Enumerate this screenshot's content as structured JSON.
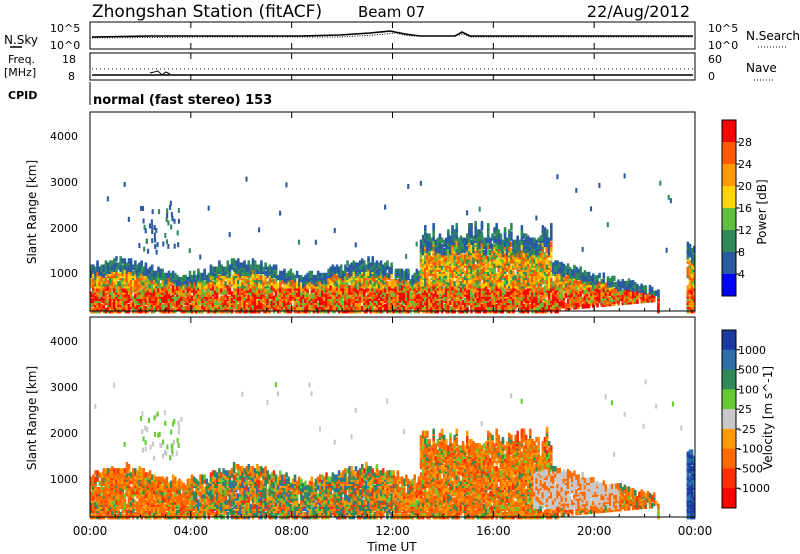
{
  "header": {
    "station": "Zhongshan Station (fitACF)",
    "beam": "Beam 07",
    "date": "22/Aug/2012"
  },
  "noise_panel": {
    "left_label": "N.Sky",
    "left_ticks": [
      "10^5",
      "10^0"
    ],
    "right_label": "N.Search",
    "right_ticks": [
      "10^5",
      "10^0"
    ]
  },
  "freq_panel": {
    "left_label_1": "Freq.",
    "left_label_2": "[MHz]",
    "left_ticks": [
      "18",
      "8"
    ],
    "right_label": "Nave",
    "right_ticks": [
      "60",
      "0"
    ],
    "cpid_label": "CPID",
    "cpid_text": "normal (fast stereo) 153"
  },
  "x_axis": {
    "label": "Time UT",
    "ticks": [
      "00:00",
      "04:00",
      "08:00",
      "12:00",
      "16:00",
      "20:00",
      "00:00"
    ]
  },
  "chart_data": [
    {
      "type": "heatmap",
      "title": "",
      "xlabel": "Time UT",
      "ylabel": "Slant Range [km]",
      "x_range_hours": [
        0,
        24
      ],
      "ylim": [
        180,
        4500
      ],
      "y_ticks": [
        "4000",
        "3000",
        "2000",
        "1000"
      ],
      "colorbar": {
        "label": "Power [dB]",
        "ticks": [
          "28",
          "24",
          "20",
          "16",
          "12",
          "8",
          "4"
        ],
        "colors": [
          "#ff0000",
          "#ff5a00",
          "#ff9a00",
          "#ffd400",
          "#5fc040",
          "#2e8b57",
          "#2a5aa0",
          "#0000ff"
        ]
      },
      "scatter_regions": [
        {
          "t_start": 0.0,
          "t_end": 22.5,
          "r_start": 180,
          "r_end": 1200,
          "dominant": "mixed 8-28 dB"
        },
        {
          "t_start": 13.0,
          "t_end": 18.0,
          "r_start": 1200,
          "r_end": 2200,
          "dominant": "8-20 dB"
        },
        {
          "t_start": 2.0,
          "t_end": 3.5,
          "r_start": 1500,
          "r_end": 2500,
          "dominant": "4-8 dB"
        },
        {
          "t_start": 23.5,
          "t_end": 24.0,
          "r_start": 500,
          "r_end": 1600,
          "dominant": "8-28 dB"
        }
      ]
    },
    {
      "type": "heatmap",
      "title": "",
      "xlabel": "Time UT",
      "ylabel": "Slant Range [km]",
      "x_range_hours": [
        0,
        24
      ],
      "ylim": [
        180,
        4500
      ],
      "y_ticks": [
        "4000",
        "3000",
        "2000",
        "1000"
      ],
      "colorbar": {
        "label": "Velocity [m s^-1]",
        "ticks": [
          "1000",
          "500",
          "100",
          "25",
          "-25",
          "-100",
          "-500",
          "-1000"
        ],
        "colors": [
          "#1a3aa0",
          "#2e6eaa",
          "#2e8b57",
          "#66cc33",
          "#c8c8c8",
          "#ff9a00",
          "#ff6a00",
          "#ff3000",
          "#ff0000"
        ]
      },
      "scatter_regions": [
        {
          "t_start": 0.0,
          "t_end": 22.5,
          "r_start": 180,
          "r_end": 1200,
          "dominant": "-100 to -500"
        },
        {
          "t_start": 13.0,
          "t_end": 18.0,
          "r_start": 1200,
          "r_end": 2100,
          "dominant": "-100 to -500"
        },
        {
          "t_start": 17.5,
          "t_end": 20.5,
          "r_start": 400,
          "r_end": 1200,
          "dominant": "-25 to 25"
        },
        {
          "t_start": 23.5,
          "t_end": 24.0,
          "r_start": 500,
          "r_end": 1600,
          "dominant": "500 to 1000"
        }
      ]
    }
  ]
}
